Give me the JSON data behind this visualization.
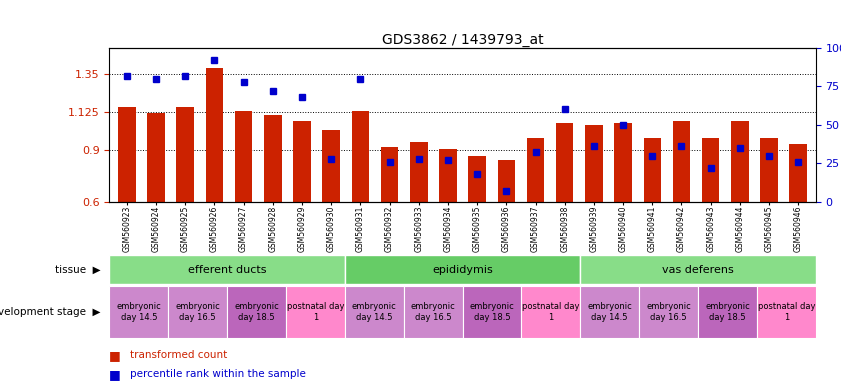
{
  "title": "GDS3862 / 1439793_at",
  "samples": [
    "GSM560923",
    "GSM560924",
    "GSM560925",
    "GSM560926",
    "GSM560927",
    "GSM560928",
    "GSM560929",
    "GSM560930",
    "GSM560931",
    "GSM560932",
    "GSM560933",
    "GSM560934",
    "GSM560935",
    "GSM560936",
    "GSM560937",
    "GSM560938",
    "GSM560939",
    "GSM560940",
    "GSM560941",
    "GSM560942",
    "GSM560943",
    "GSM560944",
    "GSM560945",
    "GSM560946"
  ],
  "red_values": [
    1.155,
    1.12,
    1.155,
    1.38,
    1.13,
    1.105,
    1.07,
    1.02,
    1.13,
    0.92,
    0.95,
    0.91,
    0.865,
    0.845,
    0.97,
    1.06,
    1.05,
    1.06,
    0.97,
    1.07,
    0.97,
    1.07,
    0.97,
    0.935
  ],
  "blue_values": [
    82,
    80,
    82,
    92,
    78,
    72,
    68,
    28,
    80,
    26,
    28,
    27,
    18,
    7,
    32,
    60,
    36,
    50,
    30,
    36,
    22,
    35,
    30,
    26
  ],
  "ylim_left": [
    0.6,
    1.5
  ],
  "ylim_right": [
    0,
    100
  ],
  "yticks_left": [
    0.6,
    0.9,
    1.125,
    1.35
  ],
  "yticks_right": [
    0,
    25,
    50,
    75,
    100
  ],
  "bar_color": "#CC2200",
  "dot_color": "#0000CC",
  "tissues": [
    {
      "label": "efferent ducts",
      "start": 0,
      "end": 8,
      "color": "#88DD88"
    },
    {
      "label": "epididymis",
      "start": 8,
      "end": 16,
      "color": "#66CC66"
    },
    {
      "label": "vas deferens",
      "start": 16,
      "end": 24,
      "color": "#88DD88"
    }
  ],
  "dev_stages": [
    {
      "label": "embryonic\nday 14.5",
      "start": 0,
      "end": 2,
      "color": "#CC88CC"
    },
    {
      "label": "embryonic\nday 16.5",
      "start": 2,
      "end": 4,
      "color": "#CC88CC"
    },
    {
      "label": "embryonic\nday 18.5",
      "start": 4,
      "end": 6,
      "color": "#BB66BB"
    },
    {
      "label": "postnatal day\n1",
      "start": 6,
      "end": 8,
      "color": "#FF88CC"
    },
    {
      "label": "embryonic\nday 14.5",
      "start": 8,
      "end": 10,
      "color": "#CC88CC"
    },
    {
      "label": "embryonic\nday 16.5",
      "start": 10,
      "end": 12,
      "color": "#CC88CC"
    },
    {
      "label": "embryonic\nday 18.5",
      "start": 12,
      "end": 14,
      "color": "#BB66BB"
    },
    {
      "label": "postnatal day\n1",
      "start": 14,
      "end": 16,
      "color": "#FF88CC"
    },
    {
      "label": "embryonic\nday 14.5",
      "start": 16,
      "end": 18,
      "color": "#CC88CC"
    },
    {
      "label": "embryonic\nday 16.5",
      "start": 18,
      "end": 20,
      "color": "#CC88CC"
    },
    {
      "label": "embryonic\nday 18.5",
      "start": 20,
      "end": 22,
      "color": "#BB66BB"
    },
    {
      "label": "postnatal day\n1",
      "start": 22,
      "end": 24,
      "color": "#FF88CC"
    }
  ],
  "legend_red_label": "transformed count",
  "legend_blue_label": "percentile rank within the sample",
  "left_label_tissue": "tissue",
  "left_label_dev": "development stage",
  "arrow": "▶",
  "bg_color": "#FFFFFF",
  "xtick_bg": "#DDDDDD"
}
